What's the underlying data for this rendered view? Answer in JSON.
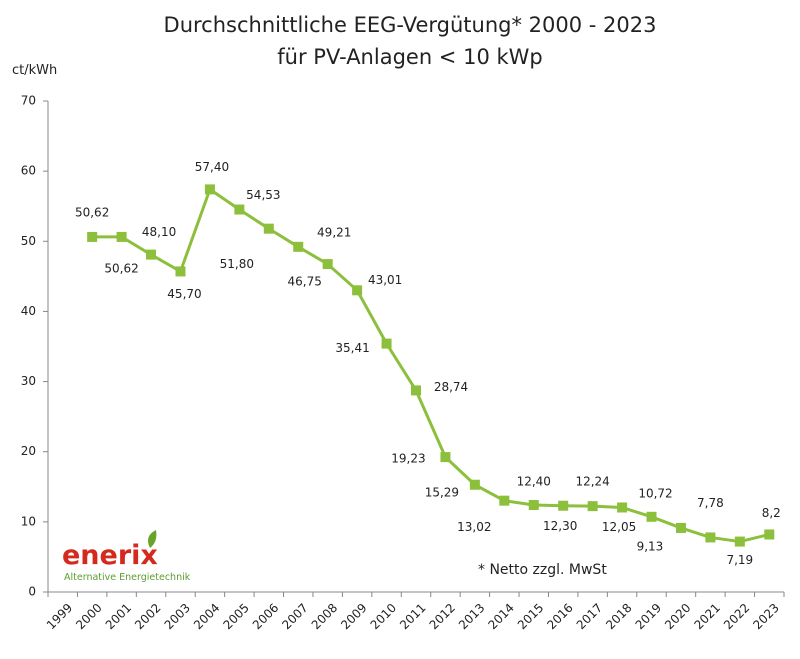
{
  "chart_data": {
    "type": "line",
    "title": "Durchschnittliche EEG-Vergütung*  2000 - 2023",
    "subtitle": "für PV-Anlagen  < 10 kWp",
    "y_label": "ct/kWh",
    "annotation": "* Netto zzgl. MwSt",
    "logo": {
      "name": "enerix",
      "tagline": "Alternative Energietechnik"
    },
    "categories": [
      "1999",
      "2000",
      "2001",
      "2002",
      "2003",
      "2004",
      "2005",
      "2006",
      "2007",
      "2008",
      "2009",
      "2010",
      "2011",
      "2012",
      "2013",
      "2014",
      "2015",
      "2016",
      "2017",
      "2018",
      "2019",
      "2020",
      "2021",
      "2022",
      "2023"
    ],
    "series": [
      {
        "name": "EEG-Vergütung",
        "color": "#8cbf3c",
        "values": [
          null,
          50.62,
          50.62,
          48.1,
          45.7,
          57.4,
          54.53,
          51.8,
          49.21,
          46.75,
          43.01,
          35.41,
          28.74,
          19.23,
          15.29,
          13.02,
          12.4,
          12.3,
          12.24,
          12.05,
          10.72,
          9.13,
          7.78,
          7.19,
          8.2
        ],
        "value_labels": [
          null,
          "50,62",
          "50,62",
          "48,10",
          "45,70",
          "57,40",
          "54,53",
          "51,80",
          "49,21",
          "46,75",
          "43,01",
          "35,41",
          "28,74",
          "19,23",
          "15,29",
          "13,02",
          "12,40",
          "12,30",
          "12,24",
          "12,05",
          "10,72",
          "9,13",
          "7,78",
          "7,19",
          "8,2"
        ]
      }
    ],
    "ylim": [
      0,
      70
    ],
    "yticks": [
      0,
      10,
      20,
      30,
      40,
      50,
      60,
      70
    ],
    "grid": false
  }
}
